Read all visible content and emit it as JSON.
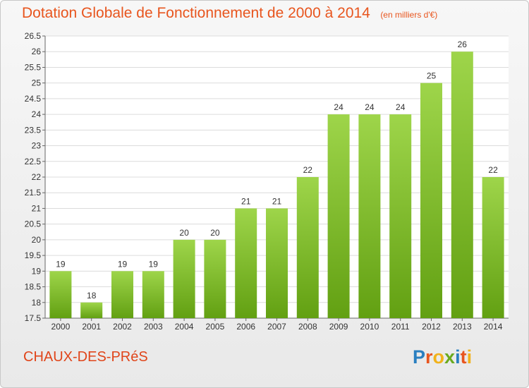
{
  "title": "Dotation Globale de Fonctionnement de 2000 à 2014",
  "subtitle": "(en milliers d'€)",
  "commune": "CHAUX-DES-PRéS",
  "logo": {
    "text": "Proxiti",
    "letters": [
      "P",
      "r",
      "o",
      "x",
      "i",
      "t",
      "i"
    ],
    "colors": [
      "#2a7fc0",
      "#e8551e",
      "#f1b21b",
      "#6aaa1e",
      "#2a7fc0",
      "#e8551e",
      "#f1b21b"
    ]
  },
  "colors": {
    "bar_top": "#9ed54a",
    "bar_bottom": "#62a012",
    "title": "#e8551e",
    "grid": "#dcdcdc"
  },
  "chart_data": {
    "type": "bar",
    "title": "Dotation Globale de Fonctionnement de 2000 à 2014",
    "subtitle": "(en milliers d'€)",
    "xlabel": "",
    "ylabel": "",
    "categories": [
      "2000",
      "2001",
      "2002",
      "2003",
      "2004",
      "2005",
      "2006",
      "2007",
      "2008",
      "2009",
      "2010",
      "2011",
      "2012",
      "2013",
      "2014"
    ],
    "values": [
      19,
      18,
      19,
      19,
      20,
      20,
      21,
      21,
      22,
      24,
      24,
      24,
      25,
      26,
      22
    ],
    "data_labels": [
      "19",
      "18",
      "19",
      "19",
      "20",
      "20",
      "21",
      "21",
      "22",
      "24",
      "24",
      "24",
      "25",
      "26",
      "22"
    ],
    "ylim": [
      17.5,
      26.5
    ],
    "yticks": [
      "17.5",
      "18",
      "18.5",
      "19",
      "19.5",
      "20",
      "20.5",
      "21",
      "21.5",
      "22",
      "22.5",
      "23",
      "23.5",
      "24",
      "24.5",
      "25",
      "25.5",
      "26",
      "26.5"
    ],
    "grid": true,
    "legend": "none"
  }
}
